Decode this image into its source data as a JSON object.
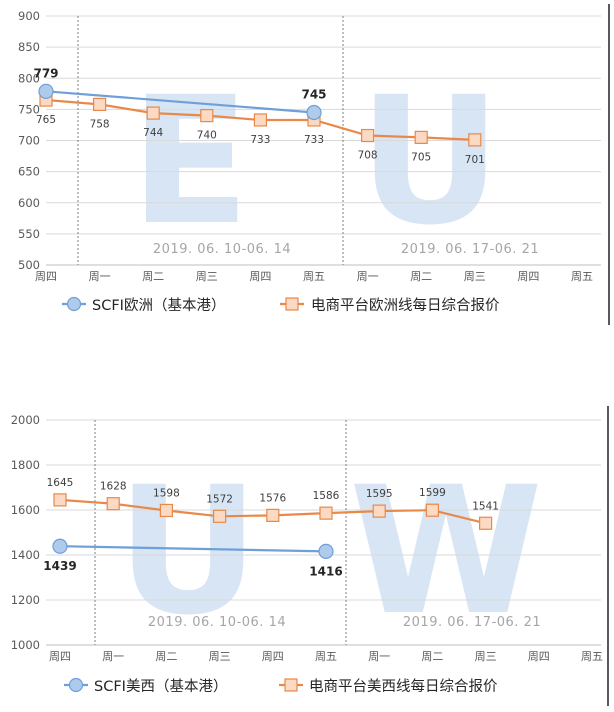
{
  "chart_data": [
    {
      "type": "line",
      "watermark": "EU",
      "categories": [
        "周四",
        "周一",
        "周二",
        "周三",
        "周四",
        "周五",
        "周一",
        "周二",
        "周三",
        "周四",
        "周五"
      ],
      "ylim": [
        500,
        900
      ],
      "yticks": [
        500,
        550,
        600,
        650,
        700,
        750,
        800,
        850,
        900
      ],
      "period_labels": [
        "2019. 06. 10-06. 14",
        "2019. 06. 17-06. 21"
      ],
      "legend_placement": "bottom",
      "series": [
        {
          "name": "SCFI欧洲（基本港）",
          "color": "#6f9fd8",
          "marker": "circle",
          "values": [
            779,
            null,
            null,
            null,
            null,
            745,
            null,
            null,
            null,
            null,
            null
          ],
          "labels": [
            "779",
            "",
            "",
            "",
            "",
            "745",
            "",
            "",
            "",
            "",
            ""
          ]
        },
        {
          "name": "电商平台欧洲线每日综合报价",
          "color": "#e8894a",
          "marker": "square",
          "values": [
            765,
            758,
            744,
            740,
            733,
            733,
            708,
            705,
            701,
            null,
            null
          ],
          "labels": [
            "765",
            "758",
            "744",
            "740",
            "733",
            "733",
            "708",
            "705",
            "701",
            "",
            ""
          ]
        }
      ]
    },
    {
      "type": "line",
      "watermark": "UW",
      "categories": [
        "周四",
        "周一",
        "周二",
        "周三",
        "周四",
        "周五",
        "周一",
        "周二",
        "周三",
        "周四",
        "周五"
      ],
      "ylim": [
        1000,
        2000
      ],
      "yticks": [
        1000,
        1200,
        1400,
        1600,
        1800,
        2000
      ],
      "period_labels": [
        "2019. 06. 10-06. 14",
        "2019. 06. 17-06. 21"
      ],
      "legend_placement": "bottom",
      "series": [
        {
          "name": "SCFI美西（基本港）",
          "color": "#6f9fd8",
          "marker": "circle",
          "values": [
            1439,
            null,
            null,
            null,
            null,
            1416,
            null,
            null,
            null,
            null,
            null
          ],
          "labels": [
            "1439",
            "",
            "",
            "",
            "",
            "1416",
            "",
            "",
            "",
            "",
            ""
          ]
        },
        {
          "name": "电商平台美西线每日综合报价",
          "color": "#e8894a",
          "marker": "square",
          "values": [
            1645,
            1628,
            1598,
            1572,
            1576,
            1586,
            1595,
            1599,
            1541,
            null,
            null
          ],
          "labels": [
            "1645",
            "1628",
            "1598",
            "1572",
            "1576",
            "1586",
            "1595",
            "1599",
            "1541",
            "",
            ""
          ]
        }
      ]
    }
  ]
}
